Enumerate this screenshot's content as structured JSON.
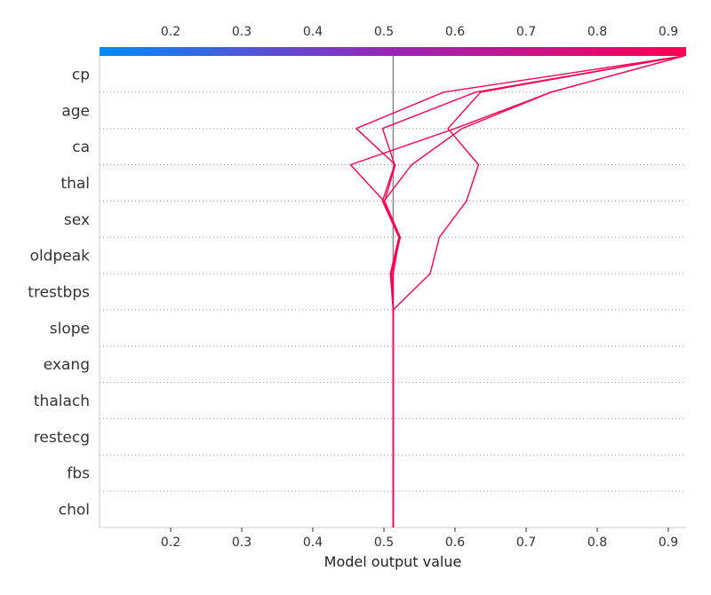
{
  "chart_data": {
    "type": "line",
    "subtype": "shap-decision-plot",
    "title": "",
    "xlabel": "Model output value",
    "ylabel": "",
    "xlim": [
      0.1,
      0.925
    ],
    "xticks": [
      0.2,
      0.3,
      0.4,
      0.5,
      0.6,
      0.7,
      0.8,
      0.9
    ],
    "xtick_labels": [
      "0.2",
      "0.3",
      "0.4",
      "0.5",
      "0.6",
      "0.7",
      "0.8",
      "0.9"
    ],
    "base_value": 0.513,
    "features": [
      "chol",
      "fbs",
      "restecg",
      "thalach",
      "exang",
      "slope",
      "trestbps",
      "oldpeak",
      "sex",
      "thal",
      "ca",
      "age",
      "cp"
    ],
    "grid": "dotted horizontal",
    "colorbar": {
      "position": "top",
      "colormap": "blue-purple-red",
      "low": "#008bfb",
      "mid": "#9a24b8",
      "high": "#ff0052"
    },
    "line_color": "#ff0052",
    "series": [
      {
        "values": [
          0.513,
          0.513,
          0.513,
          0.513,
          0.513,
          0.513,
          0.513,
          0.513,
          0.522,
          0.5,
          0.453,
          0.6,
          0.735,
          0.922
        ]
      },
      {
        "values": [
          0.513,
          0.513,
          0.513,
          0.513,
          0.513,
          0.513,
          0.513,
          0.511,
          0.523,
          0.501,
          0.516,
          0.461,
          0.584,
          0.922
        ]
      },
      {
        "values": [
          0.513,
          0.513,
          0.513,
          0.513,
          0.513,
          0.513,
          0.513,
          0.565,
          0.578,
          0.616,
          0.633,
          0.59,
          0.636,
          0.922
        ]
      },
      {
        "values": [
          0.513,
          0.513,
          0.513,
          0.513,
          0.513,
          0.513,
          0.513,
          0.51,
          0.522,
          0.5,
          0.539,
          0.61,
          0.735,
          0.922
        ]
      },
      {
        "values": [
          0.513,
          0.513,
          0.513,
          0.513,
          0.513,
          0.513,
          0.513,
          0.509,
          0.521,
          0.498,
          0.515,
          0.498,
          0.629,
          0.922
        ]
      }
    ]
  }
}
